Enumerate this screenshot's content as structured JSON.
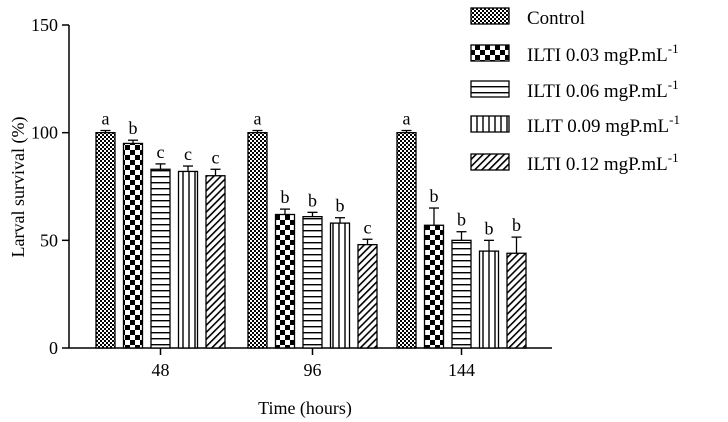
{
  "chart_data": {
    "type": "bar",
    "xlabel": "Time (hours)",
    "ylabel": "Larval survival (%)",
    "ylim": [
      0,
      150
    ],
    "yticks": [
      "0",
      "50",
      "100",
      "150"
    ],
    "categories": [
      "48",
      "96",
      "144"
    ],
    "legend_position": "top-right",
    "series": [
      {
        "name": "Control",
        "unit": "",
        "pattern": "checker-small",
        "values": [
          100,
          100,
          100
        ],
        "errors": [
          1,
          1,
          1
        ],
        "letters": [
          "a",
          "a",
          "a"
        ]
      },
      {
        "name": "ILTI 0.03 mgP.mL",
        "unit": "-1",
        "pattern": "checker-large",
        "values": [
          95,
          62,
          57
        ],
        "errors": [
          1.5,
          2.5,
          8
        ],
        "letters": [
          "b",
          "b",
          "b"
        ]
      },
      {
        "name": "ILTI 0.06 mgP.mL",
        "unit": "-1",
        "pattern": "horizontal",
        "values": [
          83,
          61,
          50
        ],
        "errors": [
          2.5,
          2,
          4
        ],
        "letters": [
          "c",
          "b",
          "b"
        ]
      },
      {
        "name": "ILIT 0.09 mgP.mL",
        "unit": "-1",
        "pattern": "vertical",
        "values": [
          82,
          58,
          45
        ],
        "errors": [
          2.5,
          2.5,
          5
        ],
        "letters": [
          "c",
          "b",
          "b"
        ]
      },
      {
        "name": "ILTI 0.12  mgP.mL",
        "unit": "-1",
        "pattern": "diagonal",
        "values": [
          80,
          48,
          44
        ],
        "errors": [
          3,
          2.5,
          7.5
        ],
        "letters": [
          "c",
          "c",
          "b"
        ]
      }
    ]
  }
}
